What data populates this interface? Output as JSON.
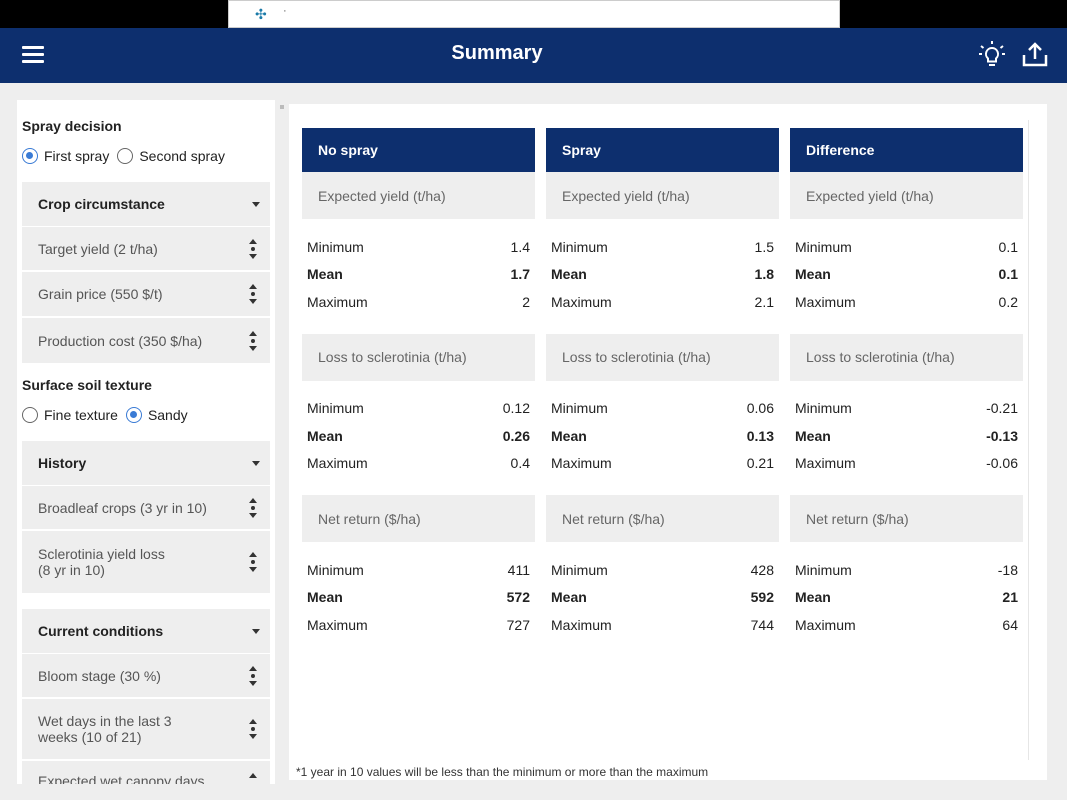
{
  "header": {
    "title": "Summary"
  },
  "sidebar": {
    "spray_decision": {
      "title": "Spray decision",
      "options": [
        "First spray",
        "Second spray"
      ]
    },
    "crop": {
      "title": "Crop circumstance",
      "items": [
        "Target yield (2 t/ha)",
        "Grain price (550 $/t)",
        "Production cost (350 $/ha)"
      ]
    },
    "soil": {
      "title": "Surface soil texture",
      "options": [
        "Fine texture",
        "Sandy"
      ]
    },
    "history": {
      "title": "History",
      "items": [
        "Broadleaf crops (3 yr in 10)",
        "Sclerotinia yield loss",
        "(8 yr in 10)"
      ]
    },
    "conditions": {
      "title": "Current conditions",
      "items": [
        "Bloom stage (30 %)",
        "Wet days in the last 3",
        "weeks (10 of 21)",
        "Expected wet canopy days"
      ]
    }
  },
  "table": {
    "labels": {
      "min": "Minimum",
      "mean": "Mean",
      "max": "Maximum"
    },
    "columns": [
      {
        "title": "No spray",
        "blocks": [
          {
            "title": "Expected yield (t/ha)",
            "min": "1.4",
            "mean": "1.7",
            "max": "2"
          },
          {
            "title": "Loss to sclerotinia (t/ha)",
            "min": "0.12",
            "mean": "0.26",
            "max": "0.4"
          },
          {
            "title": "Net return ($/ha)",
            "min": "411",
            "mean": "572",
            "max": "727"
          }
        ]
      },
      {
        "title": "Spray",
        "blocks": [
          {
            "title": "Expected yield (t/ha)",
            "min": "1.5",
            "mean": "1.8",
            "max": "2.1"
          },
          {
            "title": "Loss to sclerotinia (t/ha)",
            "min": "0.06",
            "mean": "0.13",
            "max": "0.21"
          },
          {
            "title": "Net return ($/ha)",
            "min": "428",
            "mean": "592",
            "max": "744"
          }
        ]
      },
      {
        "title": "Difference",
        "blocks": [
          {
            "title": "Expected yield (t/ha)",
            "min": "0.1",
            "mean": "0.1",
            "max": "0.2"
          },
          {
            "title": "Loss to sclerotinia (t/ha)",
            "min": "-0.21",
            "mean": "-0.13",
            "max": "-0.06"
          },
          {
            "title": "Net return ($/ha)",
            "min": "-18",
            "mean": "21",
            "max": "64"
          }
        ]
      }
    ]
  },
  "footnote": "*1 year in 10 values will be less than the minimum or more than the maximum"
}
